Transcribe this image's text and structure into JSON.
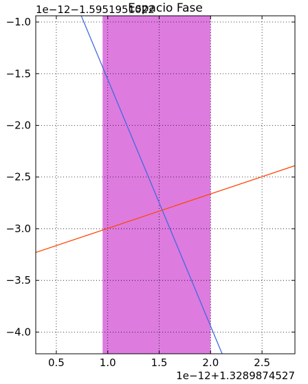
{
  "chart_data": {
    "type": "line",
    "title": "Espacio Fase",
    "xlabel": "",
    "ylabel": "",
    "x_offset_label": "1e−12+1.3289874527",
    "y_offset_label": "1e−12−1.5951951022",
    "xlim": [
      0.3,
      2.82
    ],
    "ylim": [
      -4.21,
      -0.94
    ],
    "x_ticks": [
      0.5,
      1.0,
      1.5,
      2.0,
      2.5
    ],
    "x_tick_labels": [
      "0.5",
      "1.0",
      "1.5",
      "2.0",
      "2.5"
    ],
    "y_ticks": [
      -1.0,
      -1.5,
      -2.0,
      -2.5,
      -3.0,
      -3.5,
      -4.0
    ],
    "y_tick_labels": [
      "−1.0",
      "−1.5",
      "−2.0",
      "−2.5",
      "−3.0",
      "−3.5",
      "−4.0"
    ],
    "grid": true,
    "span": {
      "x_start": 0.95,
      "x_end": 2.0,
      "color": "#dd7bdf"
    },
    "series": [
      {
        "color": "#4169e1",
        "x": [
          0.6,
          2.2
        ],
        "y": [
          -0.6,
          -4.42
        ]
      },
      {
        "color": "#ff4500",
        "x": [
          0.3,
          2.82
        ],
        "y": [
          -3.23,
          -2.39
        ]
      }
    ]
  }
}
